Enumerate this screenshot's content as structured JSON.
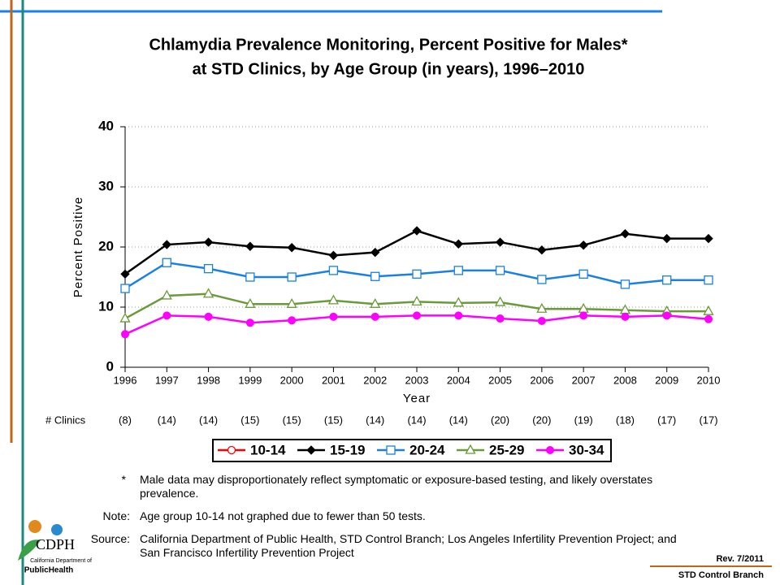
{
  "chart_data": {
    "type": "line",
    "title": [
      "Chlamydia Prevalence Monitoring, Percent Positive for Males*",
      "at STD Clinics, by Age Group (in years), 1996–2010"
    ],
    "x_label": "Year",
    "y_label": "Percent Positive",
    "x": [
      1996,
      1997,
      1998,
      1999,
      2000,
      2001,
      2002,
      2003,
      2004,
      2005,
      2006,
      2007,
      2008,
      2009,
      2010
    ],
    "xlim": [
      1996,
      2010
    ],
    "xticks": [
      1996,
      1997,
      1998,
      1999,
      2000,
      2001,
      2002,
      2003,
      2004,
      2005,
      2006,
      2007,
      2008,
      2009,
      2010
    ],
    "ylim": [
      0,
      40
    ],
    "yticks": [
      0,
      10,
      20,
      30,
      40
    ],
    "grid": true,
    "series": [
      {
        "name": "10-14",
        "color": "#ff0000",
        "marker": "open-circle",
        "values": [
          null,
          null,
          null,
          null,
          null,
          null,
          null,
          null,
          null,
          null,
          null,
          null,
          null,
          null,
          null
        ]
      },
      {
        "name": "15-19",
        "color": "#000000",
        "marker": "diamond",
        "values": [
          15.5,
          20.4,
          20.8,
          20.1,
          19.9,
          18.6,
          19.1,
          22.7,
          20.5,
          20.8,
          19.5,
          20.3,
          22.2,
          21.4,
          21.4
        ]
      },
      {
        "name": "20-24",
        "color": "#1a7fe6",
        "marker": "open-square",
        "values": [
          13.1,
          17.4,
          16.4,
          15.0,
          15.0,
          16.1,
          15.1,
          15.5,
          16.1,
          16.1,
          14.6,
          15.5,
          13.8,
          14.5,
          14.5
        ]
      },
      {
        "name": "25-29",
        "color": "#6a9a3a",
        "marker": "open-triangle",
        "values": [
          8.1,
          11.9,
          12.2,
          10.5,
          10.5,
          11.1,
          10.5,
          10.9,
          10.7,
          10.8,
          9.7,
          9.7,
          9.5,
          9.3,
          9.3
        ]
      },
      {
        "name": "30-34",
        "color": "#ff00ff",
        "marker": "circle",
        "values": [
          5.5,
          8.6,
          8.4,
          7.4,
          7.8,
          8.4,
          8.4,
          8.6,
          8.6,
          8.1,
          7.7,
          8.6,
          8.4,
          8.6,
          8.0
        ]
      }
    ],
    "clinics_label": "# Clinics",
    "clinic_counts": [
      "(8)",
      "(14)",
      "(14)",
      "(15)",
      "(15)",
      "(15)",
      "(14)",
      "(14)",
      "(14)",
      "(20)",
      "(20)",
      "(19)",
      "(18)",
      "(17)",
      "(17)"
    ]
  },
  "notes": [
    {
      "marker": "*",
      "text": "Male data may disproportionately reflect symptomatic or exposure-based testing, and likely overstates prevalence."
    },
    {
      "marker": "Note:",
      "text": "Age group 10-14 not graphed due to fewer than 50 tests."
    },
    {
      "marker": "Source:",
      "text": "California Department of Public Health, STD Control Branch; Los Angeles Infertility Prevention Project; and San Francisco Infertility Prevention Project"
    }
  ],
  "logo": {
    "name": "CDPH",
    "line1": "California Department of",
    "line2": "PublicHealth"
  },
  "footer": {
    "revision": "Rev. 7/2011",
    "branch": "STD Control Branch"
  }
}
